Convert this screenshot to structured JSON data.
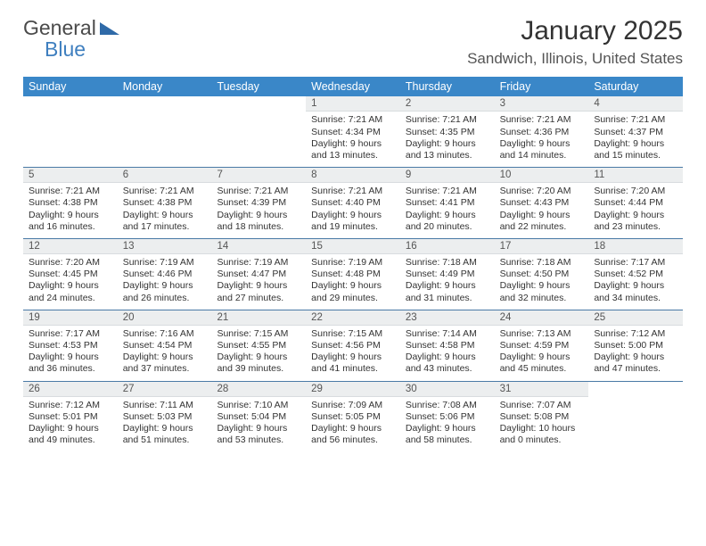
{
  "brand": {
    "part1": "General",
    "part2": "Blue"
  },
  "title": "January 2025",
  "location": "Sandwich, Illinois, United States",
  "colors": {
    "header_bg": "#3a87c8",
    "header_text": "#ffffff",
    "daynum_bg": "#eceeef",
    "week_border": "#4a7aa6"
  },
  "days_of_week": [
    "Sunday",
    "Monday",
    "Tuesday",
    "Wednesday",
    "Thursday",
    "Friday",
    "Saturday"
  ],
  "weeks": [
    [
      null,
      null,
      null,
      {
        "n": "1",
        "sr": "Sunrise: 7:21 AM",
        "ss": "Sunset: 4:34 PM",
        "d1": "Daylight: 9 hours",
        "d2": "and 13 minutes."
      },
      {
        "n": "2",
        "sr": "Sunrise: 7:21 AM",
        "ss": "Sunset: 4:35 PM",
        "d1": "Daylight: 9 hours",
        "d2": "and 13 minutes."
      },
      {
        "n": "3",
        "sr": "Sunrise: 7:21 AM",
        "ss": "Sunset: 4:36 PM",
        "d1": "Daylight: 9 hours",
        "d2": "and 14 minutes."
      },
      {
        "n": "4",
        "sr": "Sunrise: 7:21 AM",
        "ss": "Sunset: 4:37 PM",
        "d1": "Daylight: 9 hours",
        "d2": "and 15 minutes."
      }
    ],
    [
      {
        "n": "5",
        "sr": "Sunrise: 7:21 AM",
        "ss": "Sunset: 4:38 PM",
        "d1": "Daylight: 9 hours",
        "d2": "and 16 minutes."
      },
      {
        "n": "6",
        "sr": "Sunrise: 7:21 AM",
        "ss": "Sunset: 4:38 PM",
        "d1": "Daylight: 9 hours",
        "d2": "and 17 minutes."
      },
      {
        "n": "7",
        "sr": "Sunrise: 7:21 AM",
        "ss": "Sunset: 4:39 PM",
        "d1": "Daylight: 9 hours",
        "d2": "and 18 minutes."
      },
      {
        "n": "8",
        "sr": "Sunrise: 7:21 AM",
        "ss": "Sunset: 4:40 PM",
        "d1": "Daylight: 9 hours",
        "d2": "and 19 minutes."
      },
      {
        "n": "9",
        "sr": "Sunrise: 7:21 AM",
        "ss": "Sunset: 4:41 PM",
        "d1": "Daylight: 9 hours",
        "d2": "and 20 minutes."
      },
      {
        "n": "10",
        "sr": "Sunrise: 7:20 AM",
        "ss": "Sunset: 4:43 PM",
        "d1": "Daylight: 9 hours",
        "d2": "and 22 minutes."
      },
      {
        "n": "11",
        "sr": "Sunrise: 7:20 AM",
        "ss": "Sunset: 4:44 PM",
        "d1": "Daylight: 9 hours",
        "d2": "and 23 minutes."
      }
    ],
    [
      {
        "n": "12",
        "sr": "Sunrise: 7:20 AM",
        "ss": "Sunset: 4:45 PM",
        "d1": "Daylight: 9 hours",
        "d2": "and 24 minutes."
      },
      {
        "n": "13",
        "sr": "Sunrise: 7:19 AM",
        "ss": "Sunset: 4:46 PM",
        "d1": "Daylight: 9 hours",
        "d2": "and 26 minutes."
      },
      {
        "n": "14",
        "sr": "Sunrise: 7:19 AM",
        "ss": "Sunset: 4:47 PM",
        "d1": "Daylight: 9 hours",
        "d2": "and 27 minutes."
      },
      {
        "n": "15",
        "sr": "Sunrise: 7:19 AM",
        "ss": "Sunset: 4:48 PM",
        "d1": "Daylight: 9 hours",
        "d2": "and 29 minutes."
      },
      {
        "n": "16",
        "sr": "Sunrise: 7:18 AM",
        "ss": "Sunset: 4:49 PM",
        "d1": "Daylight: 9 hours",
        "d2": "and 31 minutes."
      },
      {
        "n": "17",
        "sr": "Sunrise: 7:18 AM",
        "ss": "Sunset: 4:50 PM",
        "d1": "Daylight: 9 hours",
        "d2": "and 32 minutes."
      },
      {
        "n": "18",
        "sr": "Sunrise: 7:17 AM",
        "ss": "Sunset: 4:52 PM",
        "d1": "Daylight: 9 hours",
        "d2": "and 34 minutes."
      }
    ],
    [
      {
        "n": "19",
        "sr": "Sunrise: 7:17 AM",
        "ss": "Sunset: 4:53 PM",
        "d1": "Daylight: 9 hours",
        "d2": "and 36 minutes."
      },
      {
        "n": "20",
        "sr": "Sunrise: 7:16 AM",
        "ss": "Sunset: 4:54 PM",
        "d1": "Daylight: 9 hours",
        "d2": "and 37 minutes."
      },
      {
        "n": "21",
        "sr": "Sunrise: 7:15 AM",
        "ss": "Sunset: 4:55 PM",
        "d1": "Daylight: 9 hours",
        "d2": "and 39 minutes."
      },
      {
        "n": "22",
        "sr": "Sunrise: 7:15 AM",
        "ss": "Sunset: 4:56 PM",
        "d1": "Daylight: 9 hours",
        "d2": "and 41 minutes."
      },
      {
        "n": "23",
        "sr": "Sunrise: 7:14 AM",
        "ss": "Sunset: 4:58 PM",
        "d1": "Daylight: 9 hours",
        "d2": "and 43 minutes."
      },
      {
        "n": "24",
        "sr": "Sunrise: 7:13 AM",
        "ss": "Sunset: 4:59 PM",
        "d1": "Daylight: 9 hours",
        "d2": "and 45 minutes."
      },
      {
        "n": "25",
        "sr": "Sunrise: 7:12 AM",
        "ss": "Sunset: 5:00 PM",
        "d1": "Daylight: 9 hours",
        "d2": "and 47 minutes."
      }
    ],
    [
      {
        "n": "26",
        "sr": "Sunrise: 7:12 AM",
        "ss": "Sunset: 5:01 PM",
        "d1": "Daylight: 9 hours",
        "d2": "and 49 minutes."
      },
      {
        "n": "27",
        "sr": "Sunrise: 7:11 AM",
        "ss": "Sunset: 5:03 PM",
        "d1": "Daylight: 9 hours",
        "d2": "and 51 minutes."
      },
      {
        "n": "28",
        "sr": "Sunrise: 7:10 AM",
        "ss": "Sunset: 5:04 PM",
        "d1": "Daylight: 9 hours",
        "d2": "and 53 minutes."
      },
      {
        "n": "29",
        "sr": "Sunrise: 7:09 AM",
        "ss": "Sunset: 5:05 PM",
        "d1": "Daylight: 9 hours",
        "d2": "and 56 minutes."
      },
      {
        "n": "30",
        "sr": "Sunrise: 7:08 AM",
        "ss": "Sunset: 5:06 PM",
        "d1": "Daylight: 9 hours",
        "d2": "and 58 minutes."
      },
      {
        "n": "31",
        "sr": "Sunrise: 7:07 AM",
        "ss": "Sunset: 5:08 PM",
        "d1": "Daylight: 10 hours",
        "d2": "and 0 minutes."
      },
      null
    ]
  ]
}
